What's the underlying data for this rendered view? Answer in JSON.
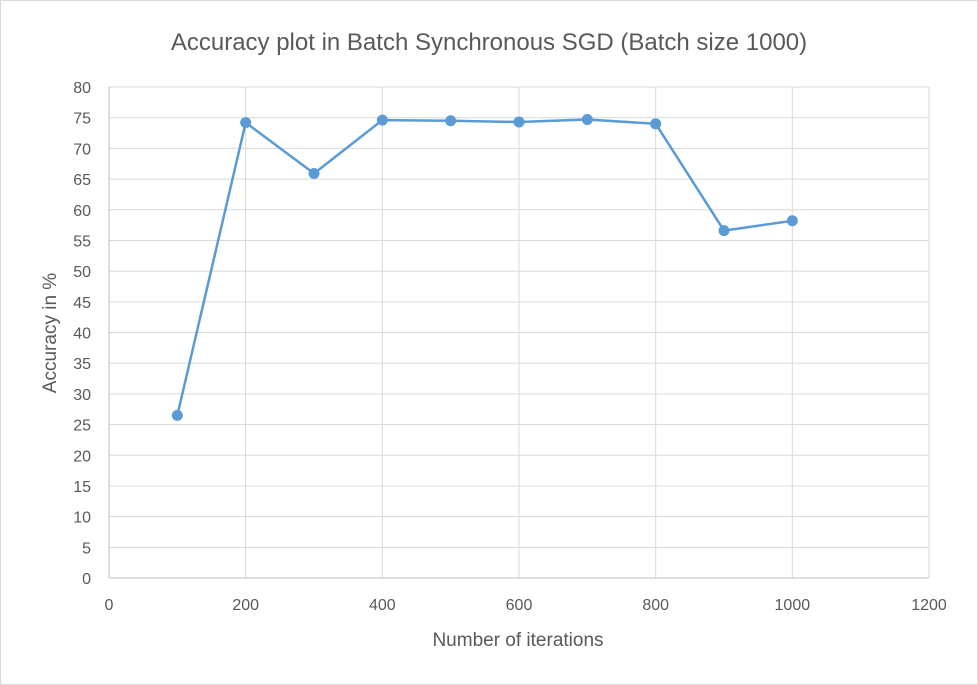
{
  "chart_data": {
    "type": "line",
    "title": "Accuracy plot in Batch Synchronous SGD (Batch size 1000)",
    "xlabel": "Number of iterations",
    "ylabel": "Accuracy in %",
    "xlim": [
      0,
      1200
    ],
    "ylim": [
      0,
      80
    ],
    "xticks": [
      0,
      200,
      400,
      600,
      800,
      1000,
      1200
    ],
    "yticks": [
      0,
      5,
      10,
      15,
      20,
      25,
      30,
      35,
      40,
      45,
      50,
      55,
      60,
      65,
      70,
      75,
      80
    ],
    "grid": true,
    "legend": "none",
    "series": [
      {
        "color": "#5b9bd5",
        "x": [
          100,
          200,
          300,
          400,
          500,
          600,
          700,
          800,
          900,
          1000
        ],
        "y": [
          26.5,
          74.2,
          65.9,
          74.6,
          74.5,
          74.3,
          74.7,
          74.0,
          56.6,
          58.2
        ]
      }
    ]
  }
}
